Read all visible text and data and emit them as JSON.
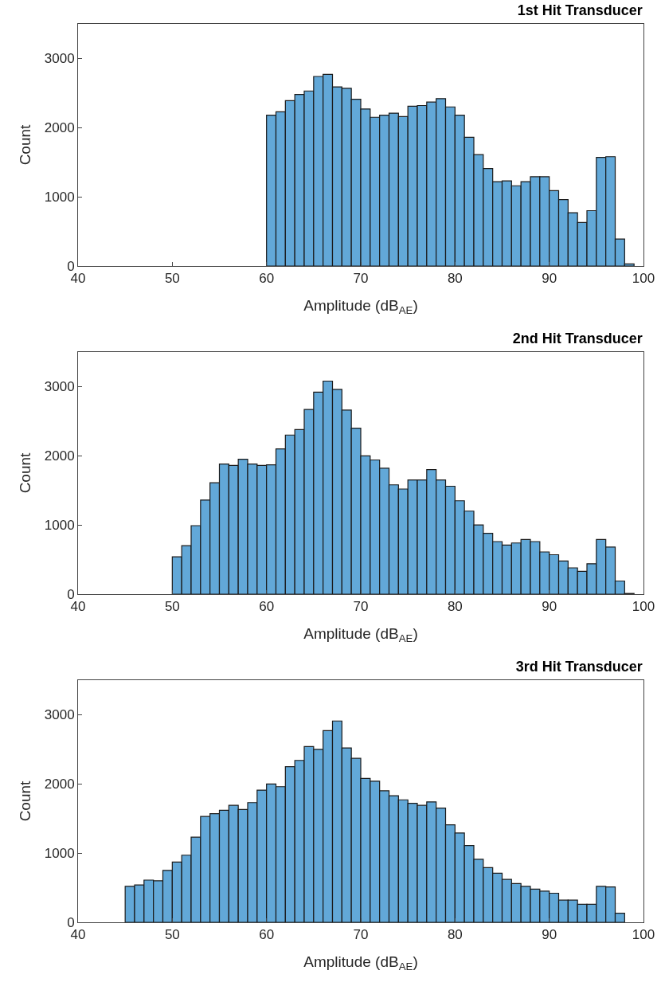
{
  "chart_data": [
    {
      "type": "histogram",
      "title": "1st Hit Transducer",
      "xlabel": "Amplitude (dB$_{AE}$)",
      "ylabel": "Count",
      "color": "#62a8d8",
      "bins": [
        45,
        46,
        47,
        48,
        49,
        50,
        51,
        52,
        53,
        54,
        55,
        56,
        57,
        58,
        59,
        60,
        61,
        62,
        63,
        64,
        65,
        66,
        67,
        68,
        69,
        70,
        71,
        72,
        73,
        74,
        75,
        76,
        77,
        78,
        79,
        80,
        81,
        82,
        83,
        84,
        85,
        86,
        87,
        88,
        89,
        90,
        91,
        92,
        93,
        94,
        95,
        96,
        97,
        98,
        99
      ],
      "values": [
        0,
        0,
        0,
        0,
        0,
        0,
        0,
        0,
        0,
        0,
        0,
        0,
        0,
        0,
        0,
        2180,
        2230,
        2390,
        2480,
        2530,
        2740,
        2770,
        2590,
        2570,
        2410,
        2270,
        2150,
        2180,
        2210,
        2160,
        2310,
        2320,
        2370,
        2420,
        2300,
        2180,
        1860,
        1610,
        1410,
        1220,
        1230,
        1160,
        1220,
        1290,
        1290,
        1090,
        960,
        770,
        630,
        800,
        1570,
        1580,
        390,
        30
      ],
      "xlim": [
        40,
        100
      ],
      "xticks": [
        40,
        50,
        60,
        70,
        80,
        90,
        100
      ],
      "ylim": [
        0,
        3500
      ],
      "yticks": [
        0,
        1000,
        2000,
        3000
      ]
    },
    {
      "type": "histogram",
      "title": "2nd Hit Transducer",
      "xlabel": "Amplitude (dB$_{AE}$)",
      "ylabel": "Count",
      "color": "#62a8d8",
      "bins": [
        45,
        46,
        47,
        48,
        49,
        50,
        51,
        52,
        53,
        54,
        55,
        56,
        57,
        58,
        59,
        60,
        61,
        62,
        63,
        64,
        65,
        66,
        67,
        68,
        69,
        70,
        71,
        72,
        73,
        74,
        75,
        76,
        77,
        78,
        79,
        80,
        81,
        82,
        83,
        84,
        85,
        86,
        87,
        88,
        89,
        90,
        91,
        92,
        93,
        94,
        95,
        96,
        97,
        98,
        99
      ],
      "values": [
        0,
        0,
        0,
        0,
        0,
        540,
        700,
        990,
        1360,
        1610,
        1880,
        1860,
        1950,
        1880,
        1860,
        1870,
        2100,
        2300,
        2380,
        2670,
        2920,
        3080,
        2960,
        2660,
        2400,
        2000,
        1940,
        1820,
        1580,
        1520,
        1650,
        1650,
        1800,
        1650,
        1560,
        1350,
        1200,
        1000,
        880,
        760,
        710,
        740,
        790,
        760,
        610,
        570,
        480,
        380,
        330,
        440,
        790,
        680,
        190,
        10
      ],
      "xlim": [
        40,
        100
      ],
      "xticks": [
        40,
        50,
        60,
        70,
        80,
        90,
        100
      ],
      "ylim": [
        0,
        3500
      ],
      "yticks": [
        0,
        1000,
        2000,
        3000
      ]
    },
    {
      "type": "histogram",
      "title": "3rd Hit Transducer",
      "xlabel": "Amplitude (dB$_{AE}$)",
      "ylabel": "Count",
      "color": "#62a8d8",
      "bins": [
        45,
        46,
        47,
        48,
        49,
        50,
        51,
        52,
        53,
        54,
        55,
        56,
        57,
        58,
        59,
        60,
        61,
        62,
        63,
        64,
        65,
        66,
        67,
        68,
        69,
        70,
        71,
        72,
        73,
        74,
        75,
        76,
        77,
        78,
        79,
        80,
        81,
        82,
        83,
        84,
        85,
        86,
        87,
        88,
        89,
        90,
        91,
        92,
        93,
        94,
        95,
        96,
        97,
        98,
        99
      ],
      "values": [
        520,
        540,
        610,
        600,
        750,
        870,
        970,
        1230,
        1530,
        1570,
        1620,
        1690,
        1630,
        1730,
        1910,
        2000,
        1960,
        2250,
        2340,
        2540,
        2500,
        2770,
        2910,
        2520,
        2370,
        2080,
        2040,
        1900,
        1830,
        1770,
        1720,
        1690,
        1740,
        1650,
        1410,
        1290,
        1110,
        910,
        790,
        710,
        620,
        560,
        520,
        480,
        450,
        420,
        320,
        320,
        260,
        260,
        520,
        510,
        130,
        0
      ],
      "xlim": [
        40,
        100
      ],
      "xticks": [
        40,
        50,
        60,
        70,
        80,
        90,
        100
      ],
      "ylim": [
        0,
        3500
      ],
      "yticks": [
        0,
        1000,
        2000,
        3000
      ]
    }
  ]
}
